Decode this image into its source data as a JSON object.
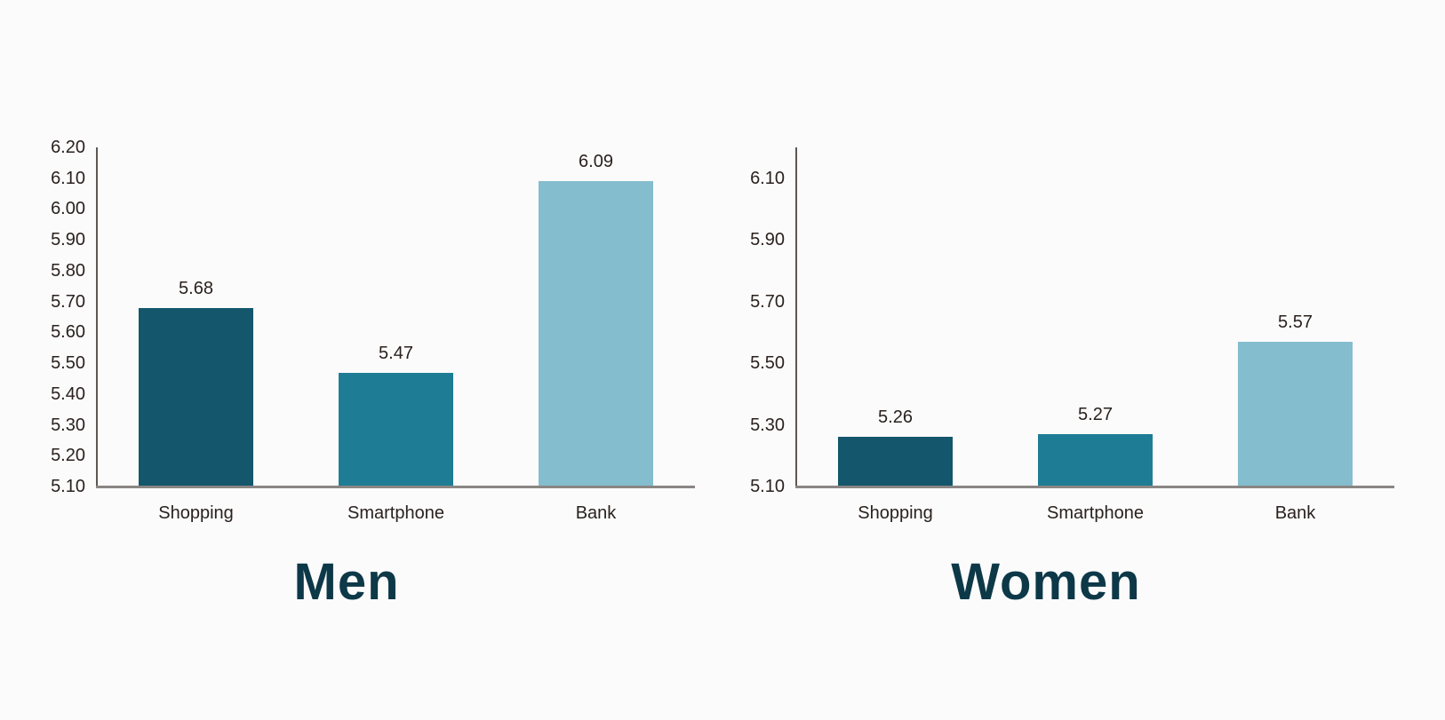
{
  "background": "#fbfbfb",
  "text_color": "#2a211e",
  "axis": {
    "vertical_line_color": "#5d5754",
    "baseline_color": "#8a8684"
  },
  "chart_data": [
    {
      "type": "bar",
      "title": "Men",
      "title_color": "#0d3848",
      "categories": [
        "Shopping",
        "Smartphone",
        "Bank"
      ],
      "values": [
        5.68,
        5.47,
        6.09
      ],
      "value_labels": [
        "5.68",
        "5.47",
        "6.09"
      ],
      "bar_colors": [
        "#14566b",
        "#1e7d95",
        "#84bdcd"
      ],
      "yticks": [
        "6.20",
        "6.10",
        "6.00",
        "5.90",
        "5.80",
        "5.70",
        "5.60",
        "5.50",
        "5.40",
        "5.30",
        "5.20",
        "5.10"
      ],
      "ylim": [
        5.1,
        6.2
      ],
      "xlabel": "",
      "ylabel": "",
      "grid": false,
      "legend": null
    },
    {
      "type": "bar",
      "title": "Women",
      "title_color": "#0d3848",
      "categories": [
        "Shopping",
        "Smartphone",
        "Bank"
      ],
      "values": [
        5.26,
        5.27,
        5.57
      ],
      "value_labels": [
        "5.26",
        "5.27",
        "5.57"
      ],
      "bar_colors": [
        "#14566b",
        "#1e7d95",
        "#84bdcd"
      ],
      "yticks": [
        "6.10",
        "5.90",
        "5.70",
        "5.50",
        "5.30",
        "5.10"
      ],
      "ylim": [
        5.1,
        6.1
      ],
      "xlabel": "",
      "ylabel": "",
      "grid": false,
      "legend": null
    }
  ]
}
